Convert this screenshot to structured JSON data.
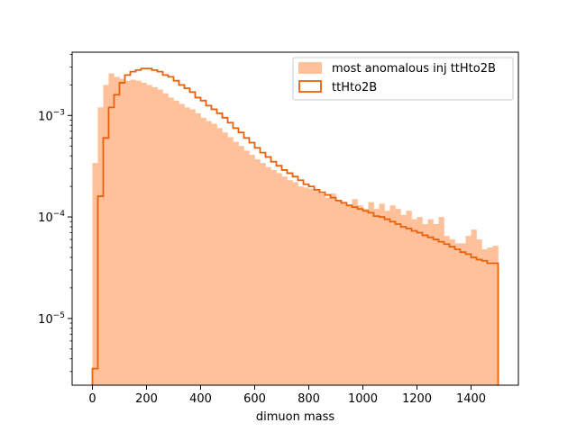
{
  "chart_data": {
    "type": "histogram",
    "xlabel": "dimuon mass",
    "ylabel": "",
    "yscale": "log",
    "xlim": [
      -75,
      1575
    ],
    "ylim": [
      2.2e-06,
      0.0042
    ],
    "x_ticks": [
      0,
      200,
      400,
      600,
      800,
      1000,
      1200,
      1400
    ],
    "y_ticks": [
      {
        "value": 1e-05,
        "base": "10",
        "exp": "−5"
      },
      {
        "value": 0.0001,
        "base": "10",
        "exp": "−4"
      },
      {
        "value": 0.001,
        "base": "10",
        "exp": "−3"
      }
    ],
    "legend_position": "top-right",
    "bin_edges": [
      0,
      20,
      40,
      60,
      80,
      100,
      120,
      140,
      160,
      180,
      200,
      220,
      240,
      260,
      280,
      300,
      320,
      340,
      360,
      380,
      400,
      420,
      440,
      460,
      480,
      500,
      520,
      540,
      560,
      580,
      600,
      620,
      640,
      660,
      680,
      700,
      720,
      740,
      760,
      780,
      800,
      820,
      840,
      860,
      880,
      900,
      920,
      940,
      960,
      980,
      1000,
      1020,
      1040,
      1060,
      1080,
      1100,
      1120,
      1140,
      1160,
      1180,
      1200,
      1220,
      1240,
      1260,
      1280,
      1300,
      1320,
      1340,
      1360,
      1380,
      1400,
      1420,
      1440,
      1460,
      1480,
      1500
    ],
    "series": [
      {
        "name": "most anomalous inj ttHto2B",
        "style": "filled",
        "color": "#ffc09a",
        "values": [
          0.00034,
          0.0012,
          0.002,
          0.0026,
          0.0024,
          0.0023,
          0.0022,
          0.00225,
          0.0022,
          0.0021,
          0.002,
          0.0019,
          0.0018,
          0.00165,
          0.0015,
          0.0014,
          0.0013,
          0.0012,
          0.00115,
          0.00105,
          0.00095,
          0.00088,
          0.00083,
          0.00075,
          0.00068,
          0.00061,
          0.00055,
          0.0005,
          0.00045,
          0.00041,
          0.00037,
          0.00034,
          0.00031,
          0.00029,
          0.00027,
          0.00025,
          0.00023,
          0.00022,
          0.0002,
          0.000195,
          0.00019,
          0.00018,
          0.00017,
          0.000155,
          0.00017,
          0.000145,
          0.00014,
          0.00013,
          0.00015,
          0.00013,
          0.00012,
          0.00014,
          0.00012,
          0.000135,
          0.000115,
          0.00013,
          0.00012,
          0.000105,
          0.000115,
          9.5e-05,
          0.0001,
          8.5e-05,
          9.5e-05,
          8.5e-05,
          0.0001,
          6.5e-05,
          6e-05,
          5.5e-05,
          5.5e-05,
          6.5e-05,
          7.5e-05,
          6e-05,
          4.8e-05,
          5e-05,
          5.2e-05
        ]
      },
      {
        "name": "ttHto2B",
        "style": "step",
        "color": "#e8620e",
        "values": [
          3.2e-06,
          0.00016,
          0.0006,
          0.0012,
          0.0016,
          0.0021,
          0.0025,
          0.0027,
          0.0028,
          0.0029,
          0.0029,
          0.0028,
          0.0027,
          0.0025,
          0.0024,
          0.0022,
          0.002,
          0.00185,
          0.0017,
          0.0015,
          0.0014,
          0.00125,
          0.00115,
          0.00105,
          0.00095,
          0.00085,
          0.00075,
          0.00068,
          0.0006,
          0.00054,
          0.00048,
          0.00043,
          0.00039,
          0.00035,
          0.00032,
          0.00029,
          0.00027,
          0.00025,
          0.00023,
          0.00021,
          0.0002,
          0.000185,
          0.000175,
          0.000165,
          0.000155,
          0.000145,
          0.000138,
          0.00013,
          0.000125,
          0.00012,
          0.000115,
          0.00011,
          0.000102,
          0.0001,
          9.5e-05,
          9e-05,
          8.5e-05,
          8e-05,
          7.7e-05,
          7.3e-05,
          7e-05,
          6.6e-05,
          6.3e-05,
          6e-05,
          5.7e-05,
          5.4e-05,
          5.1e-05,
          4.8e-05,
          4.5e-05,
          4.3e-05,
          4e-05,
          3.8e-05,
          3.7e-05,
          3.5e-05,
          3.5e-05
        ]
      }
    ]
  }
}
